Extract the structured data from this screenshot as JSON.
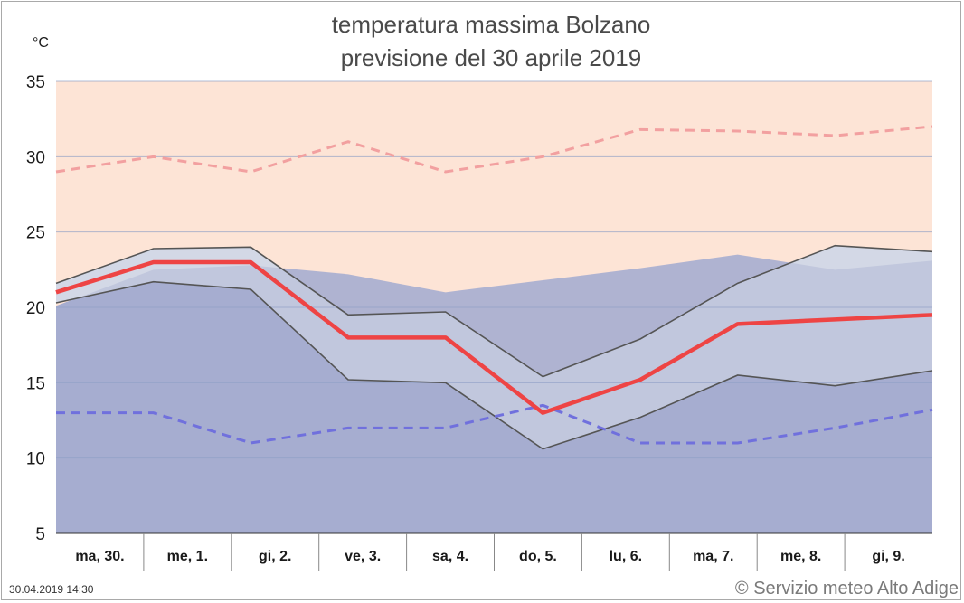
{
  "chart_data": {
    "type": "line",
    "title": "temperatura massima Bolzano",
    "subtitle": "previsione del 30 aprile 2019",
    "ylabel": "°C",
    "ylim": [
      5,
      35
    ],
    "yticks": [
      5,
      10,
      15,
      20,
      25,
      30,
      35
    ],
    "categories": [
      "ma, 30.",
      "me, 1.",
      "gi, 2.",
      "ve, 3.",
      "sa, 4.",
      "do, 5.",
      "lu, 6.",
      "ma, 7.",
      "me, 8.",
      "gi, 9."
    ],
    "series": [
      {
        "role": "forecast",
        "values": [
          21,
          23,
          23,
          18,
          18,
          13,
          15.2,
          18.9,
          19.2,
          19.5
        ]
      },
      {
        "role": "forecast-upper",
        "values": [
          21.6,
          23.9,
          24,
          19.5,
          19.7,
          15.4,
          17.9,
          21.6,
          24.1,
          23.7
        ]
      },
      {
        "role": "forecast-lower",
        "values": [
          20.3,
          21.7,
          21.2,
          15.2,
          15,
          10.6,
          12.7,
          15.5,
          14.8,
          15.8
        ]
      },
      {
        "role": "climatological-mean",
        "values": [
          20.1,
          22.5,
          22.8,
          22.2,
          21,
          21.8,
          22.6,
          23.5,
          22.5,
          23.1
        ]
      },
      {
        "role": "record-max",
        "values": [
          29,
          30,
          29,
          31,
          29,
          30,
          31.8,
          31.7,
          31.4,
          32
        ]
      },
      {
        "role": "record-min",
        "values": [
          13,
          13,
          11,
          12,
          12,
          13.5,
          11,
          11,
          12,
          13.2
        ]
      }
    ],
    "grid": true,
    "colors": {
      "forecast": "#ee4444",
      "range_fill": "#d3d8e6",
      "range_line": "#555555",
      "mean_fill": "#a6add0",
      "above_fill": "#fde4d6",
      "record_max": "#f2a0a0",
      "record_min": "#7070dd",
      "grid": "#8e9fc6"
    }
  },
  "footer": {
    "timestamp": "30.04.2019 14:30",
    "credit": "© Servizio meteo Alto Adige"
  }
}
